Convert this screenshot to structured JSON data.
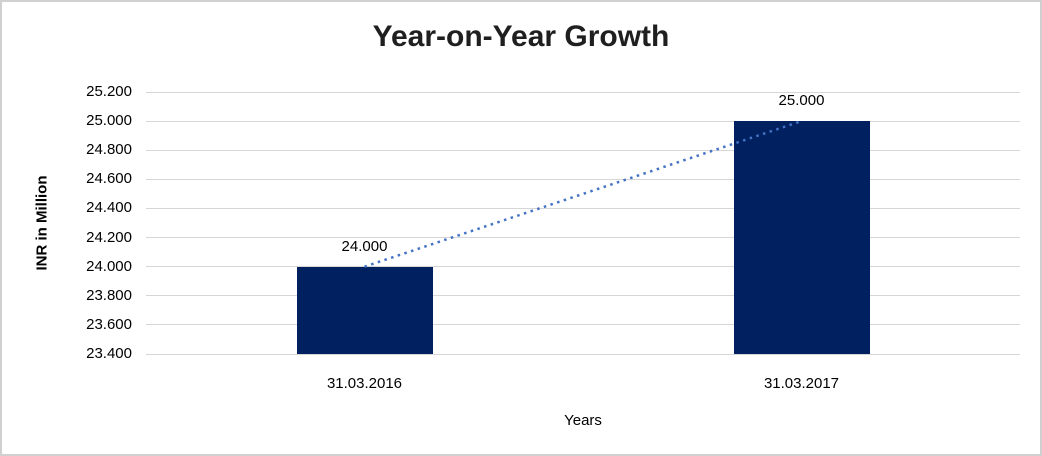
{
  "chart_data": {
    "type": "bar",
    "title": "Year-on-Year Growth",
    "xlabel": "Years",
    "ylabel": "INR in Million",
    "categories": [
      "31.03.2016",
      "31.03.2017"
    ],
    "values": [
      24.0,
      25.0
    ],
    "data_labels": [
      "24.000",
      "25.000"
    ],
    "y_ticks": [
      {
        "value": 25.2,
        "label": "25.200"
      },
      {
        "value": 25.0,
        "label": "25.000"
      },
      {
        "value": 24.8,
        "label": "24.800"
      },
      {
        "value": 24.6,
        "label": "24.600"
      },
      {
        "value": 24.4,
        "label": "24.400"
      },
      {
        "value": 24.2,
        "label": "24.200"
      },
      {
        "value": 24.0,
        "label": "24.000"
      },
      {
        "value": 23.8,
        "label": "23.800"
      },
      {
        "value": 23.6,
        "label": "23.600"
      },
      {
        "value": 23.4,
        "label": "23.400"
      }
    ],
    "ylim": [
      23.4,
      25.2
    ],
    "grid": true,
    "legend": "none",
    "trendline": {
      "style": "dotted",
      "from_category": "31.03.2016",
      "to_category": "31.03.2017",
      "color": "#4472C4"
    },
    "colors": {
      "bar": "#002060",
      "gridline": "#D6D6D6",
      "chart_border": "#D0D0D0",
      "text": "#000000",
      "title_text": "#1F1F1F"
    }
  }
}
